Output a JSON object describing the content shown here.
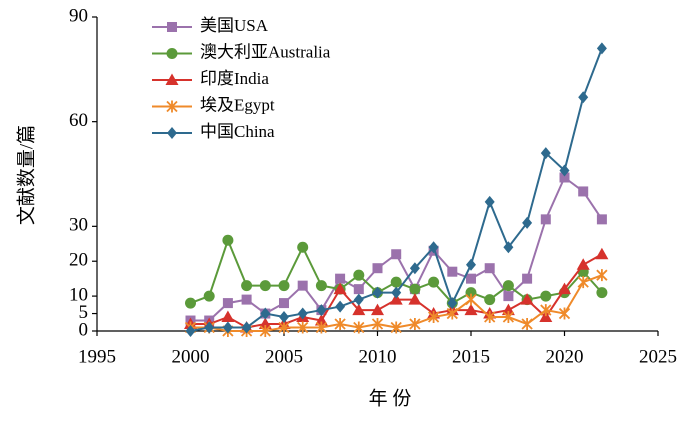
{
  "chart_data": {
    "type": "line",
    "xlabel": "年 份",
    "ylabel": "文献数量/篇",
    "x": [
      2000,
      2001,
      2002,
      2003,
      2004,
      2005,
      2006,
      2007,
      2008,
      2009,
      2010,
      2011,
      2012,
      2013,
      2014,
      2015,
      2016,
      2017,
      2018,
      2019,
      2020,
      2021,
      2022
    ],
    "xlim": [
      1995,
      2025
    ],
    "xticks": [
      1995,
      2000,
      2005,
      2010,
      2015,
      2020,
      2025
    ],
    "ylim": [
      0,
      90
    ],
    "yticks": [
      0,
      5,
      10,
      20,
      30,
      60,
      90
    ],
    "grid": false,
    "legend": "upper left",
    "series": [
      {
        "name": "美国USA",
        "color": "#9b72ac",
        "marker": "square",
        "values": [
          3,
          3,
          8,
          9,
          5,
          8,
          13,
          6,
          15,
          12,
          18,
          22,
          12,
          23,
          17,
          15,
          18,
          10,
          15,
          32,
          44,
          40,
          32
        ]
      },
      {
        "name": "澳大利亚Australia",
        "color": "#5b9a3a",
        "marker": "circle",
        "values": [
          8,
          10,
          26,
          13,
          13,
          13,
          24,
          13,
          12,
          16,
          11,
          14,
          12,
          14,
          8,
          11,
          9,
          13,
          9,
          10,
          11,
          17,
          11
        ]
      },
      {
        "name": "印度India",
        "color": "#d6322c",
        "marker": "triangle",
        "values": [
          2,
          2,
          4,
          1,
          2,
          2,
          4,
          3,
          12,
          6,
          6,
          9,
          9,
          5,
          6,
          6,
          5,
          6,
          9,
          4,
          12,
          19,
          22
        ]
      },
      {
        "name": "埃及Egypt",
        "color": "#ef8a2a",
        "marker": "asterisk",
        "values": [
          1,
          1,
          0,
          0,
          0,
          1,
          1,
          1,
          2,
          1,
          2,
          1,
          2,
          4,
          5,
          9,
          4,
          4,
          2,
          6,
          5,
          14,
          16
        ]
      },
      {
        "name": "中国China",
        "color": "#2e6a8e",
        "marker": "diamond",
        "values": [
          0,
          1,
          1,
          1,
          5,
          4,
          5,
          6,
          7,
          9,
          11,
          11,
          18,
          24,
          8,
          19,
          37,
          24,
          31,
          51,
          46,
          67,
          81
        ]
      }
    ]
  }
}
